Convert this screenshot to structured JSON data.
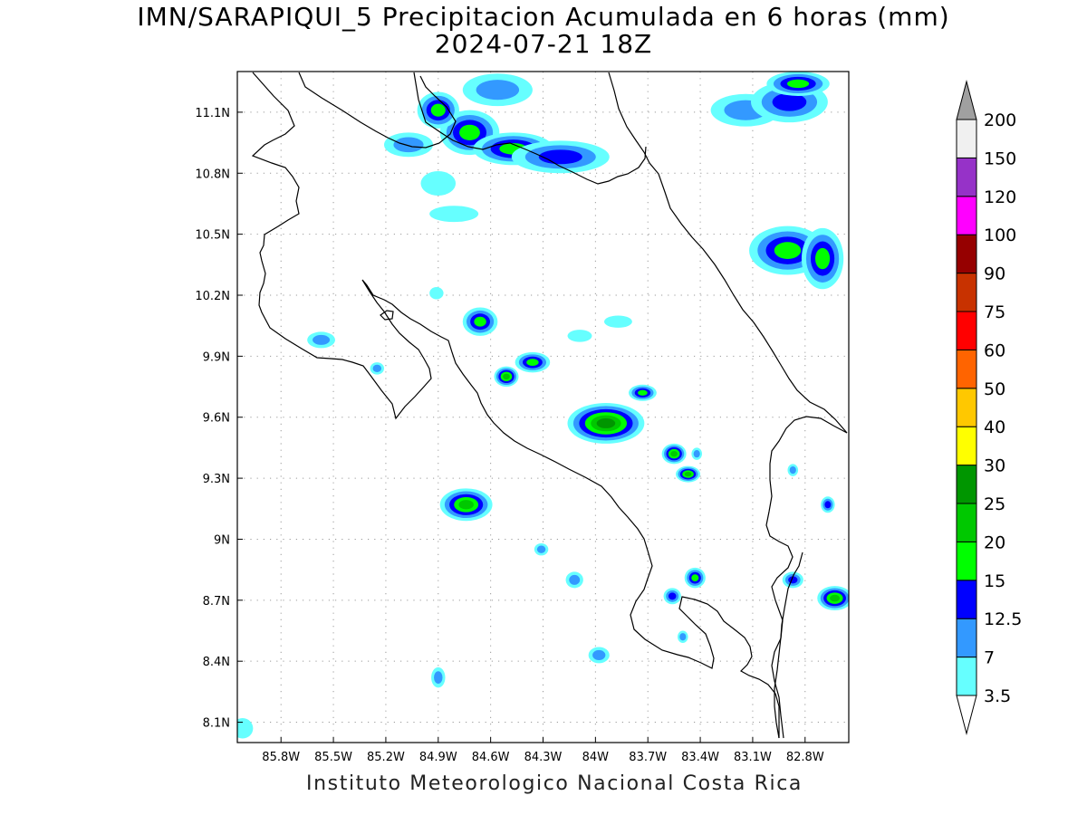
{
  "title": {
    "line1": "IMN/SARAPIQUI_5 Precipitacion Acumulada en 6 horas (mm)",
    "line2": "2024-07-21 18Z"
  },
  "footer": "Instituto Meteorologico Nacional Costa Rica",
  "map": {
    "lon_range": [
      -86.05,
      -82.55
    ],
    "lat_range": [
      8.0,
      11.3
    ],
    "lon_ticks": [
      {
        "value": -85.8,
        "label": "85.8W"
      },
      {
        "value": -85.5,
        "label": "85.5W"
      },
      {
        "value": -85.2,
        "label": "85.2W"
      },
      {
        "value": -84.9,
        "label": "84.9W"
      },
      {
        "value": -84.6,
        "label": "84.6W"
      },
      {
        "value": -84.3,
        "label": "84.3W"
      },
      {
        "value": -84.0,
        "label": "84W"
      },
      {
        "value": -83.7,
        "label": "83.7W"
      },
      {
        "value": -83.4,
        "label": "83.4W"
      },
      {
        "value": -83.1,
        "label": "83.1W"
      },
      {
        "value": -82.8,
        "label": "82.8W"
      }
    ],
    "lat_ticks": [
      {
        "value": 8.1,
        "label": "8.1N"
      },
      {
        "value": 8.4,
        "label": "8.4N"
      },
      {
        "value": 8.7,
        "label": "8.7N"
      },
      {
        "value": 9.0,
        "label": "9N"
      },
      {
        "value": 9.3,
        "label": "9.3N"
      },
      {
        "value": 9.6,
        "label": "9.6N"
      },
      {
        "value": 9.9,
        "label": "9.9N"
      },
      {
        "value": 10.2,
        "label": "10.2N"
      },
      {
        "value": 10.5,
        "label": "10.5N"
      },
      {
        "value": 10.8,
        "label": "10.8N"
      },
      {
        "value": 11.1,
        "label": "11.1N"
      }
    ],
    "grid": "dotted",
    "precip_cells": [
      {
        "lon": -84.72,
        "lat": 11.0,
        "rx": 0.17,
        "ry": 0.11,
        "level": 4
      },
      {
        "lon": -84.47,
        "lat": 10.92,
        "rx": 0.23,
        "ry": 0.08,
        "level": 4
      },
      {
        "lon": -84.9,
        "lat": 11.11,
        "rx": 0.12,
        "ry": 0.09,
        "level": 4
      },
      {
        "lon": -84.2,
        "lat": 10.88,
        "rx": 0.28,
        "ry": 0.08,
        "level": 3
      },
      {
        "lon": -85.07,
        "lat": 10.94,
        "rx": 0.14,
        "ry": 0.06,
        "level": 2
      },
      {
        "lon": -84.9,
        "lat": 10.75,
        "rx": 0.1,
        "ry": 0.06,
        "level": 1
      },
      {
        "lon": -84.56,
        "lat": 11.21,
        "rx": 0.2,
        "ry": 0.08,
        "level": 2
      },
      {
        "lon": -83.14,
        "lat": 11.11,
        "rx": 0.2,
        "ry": 0.08,
        "level": 2
      },
      {
        "lon": -82.89,
        "lat": 11.15,
        "rx": 0.22,
        "ry": 0.1,
        "level": 3
      },
      {
        "lon": -82.84,
        "lat": 11.24,
        "rx": 0.18,
        "ry": 0.06,
        "level": 4
      },
      {
        "lon": -82.9,
        "lat": 10.42,
        "rx": 0.22,
        "ry": 0.12,
        "level": 4
      },
      {
        "lon": -82.7,
        "lat": 10.38,
        "rx": 0.12,
        "ry": 0.15,
        "level": 4
      },
      {
        "lon": -85.57,
        "lat": 9.98,
        "rx": 0.08,
        "ry": 0.04,
        "level": 2
      },
      {
        "lon": -84.91,
        "lat": 10.21,
        "rx": 0.04,
        "ry": 0.03,
        "level": 1
      },
      {
        "lon": -84.66,
        "lat": 10.07,
        "rx": 0.1,
        "ry": 0.07,
        "level": 4
      },
      {
        "lon": -84.36,
        "lat": 9.87,
        "rx": 0.1,
        "ry": 0.05,
        "level": 4
      },
      {
        "lon": -84.51,
        "lat": 9.8,
        "rx": 0.07,
        "ry": 0.05,
        "level": 5
      },
      {
        "lon": -83.94,
        "lat": 9.57,
        "rx": 0.22,
        "ry": 0.1,
        "level": 6
      },
      {
        "lon": -83.73,
        "lat": 9.72,
        "rx": 0.08,
        "ry": 0.04,
        "level": 4
      },
      {
        "lon": -83.55,
        "lat": 9.42,
        "rx": 0.07,
        "ry": 0.05,
        "level": 5
      },
      {
        "lon": -83.47,
        "lat": 9.32,
        "rx": 0.07,
        "ry": 0.04,
        "level": 5
      },
      {
        "lon": -84.74,
        "lat": 9.17,
        "rx": 0.15,
        "ry": 0.08,
        "level": 5
      },
      {
        "lon": -84.31,
        "lat": 8.95,
        "rx": 0.04,
        "ry": 0.03,
        "level": 2
      },
      {
        "lon": -84.9,
        "lat": 8.32,
        "rx": 0.04,
        "ry": 0.05,
        "level": 2
      },
      {
        "lon": -83.43,
        "lat": 8.81,
        "rx": 0.06,
        "ry": 0.05,
        "level": 4
      },
      {
        "lon": -83.56,
        "lat": 8.72,
        "rx": 0.05,
        "ry": 0.04,
        "level": 3
      },
      {
        "lon": -82.63,
        "lat": 8.71,
        "rx": 0.1,
        "ry": 0.06,
        "level": 5
      },
      {
        "lon": -82.87,
        "lat": 8.8,
        "rx": 0.06,
        "ry": 0.04,
        "level": 3
      },
      {
        "lon": -82.67,
        "lat": 9.17,
        "rx": 0.04,
        "ry": 0.04,
        "level": 3
      },
      {
        "lon": -82.87,
        "lat": 9.34,
        "rx": 0.03,
        "ry": 0.03,
        "level": 2
      },
      {
        "lon": -83.42,
        "lat": 9.42,
        "rx": 0.03,
        "ry": 0.03,
        "level": 2
      },
      {
        "lon": -84.09,
        "lat": 10.0,
        "rx": 0.07,
        "ry": 0.03,
        "level": 1
      },
      {
        "lon": -83.87,
        "lat": 10.07,
        "rx": 0.08,
        "ry": 0.03,
        "level": 1
      },
      {
        "lon": -84.81,
        "lat": 10.6,
        "rx": 0.14,
        "ry": 0.04,
        "level": 1
      },
      {
        "lon": -84.12,
        "lat": 8.8,
        "rx": 0.05,
        "ry": 0.04,
        "level": 2
      },
      {
        "lon": -83.98,
        "lat": 8.43,
        "rx": 0.06,
        "ry": 0.04,
        "level": 2
      },
      {
        "lon": -86.02,
        "lat": 8.07,
        "rx": 0.06,
        "ry": 0.05,
        "level": 1
      },
      {
        "lon": -85.25,
        "lat": 9.84,
        "rx": 0.04,
        "ry": 0.03,
        "level": 2
      },
      {
        "lon": -83.5,
        "lat": 8.52,
        "rx": 0.03,
        "ry": 0.03,
        "level": 2
      }
    ]
  },
  "colorbar": {
    "labels": [
      "3.5",
      "7",
      "12.5",
      "15",
      "20",
      "25",
      "30",
      "40",
      "50",
      "60",
      "75",
      "90",
      "100",
      "120",
      "150",
      "200"
    ],
    "colors": [
      "#66ffff",
      "#3399ff",
      "#0000ff",
      "#00ff00",
      "#00c800",
      "#009600",
      "#ffff00",
      "#ffc800",
      "#ff6400",
      "#ff0000",
      "#c83200",
      "#960000",
      "#ff00ff",
      "#9632c8",
      "#f0f0f0",
      "#a0a0a0"
    ]
  }
}
